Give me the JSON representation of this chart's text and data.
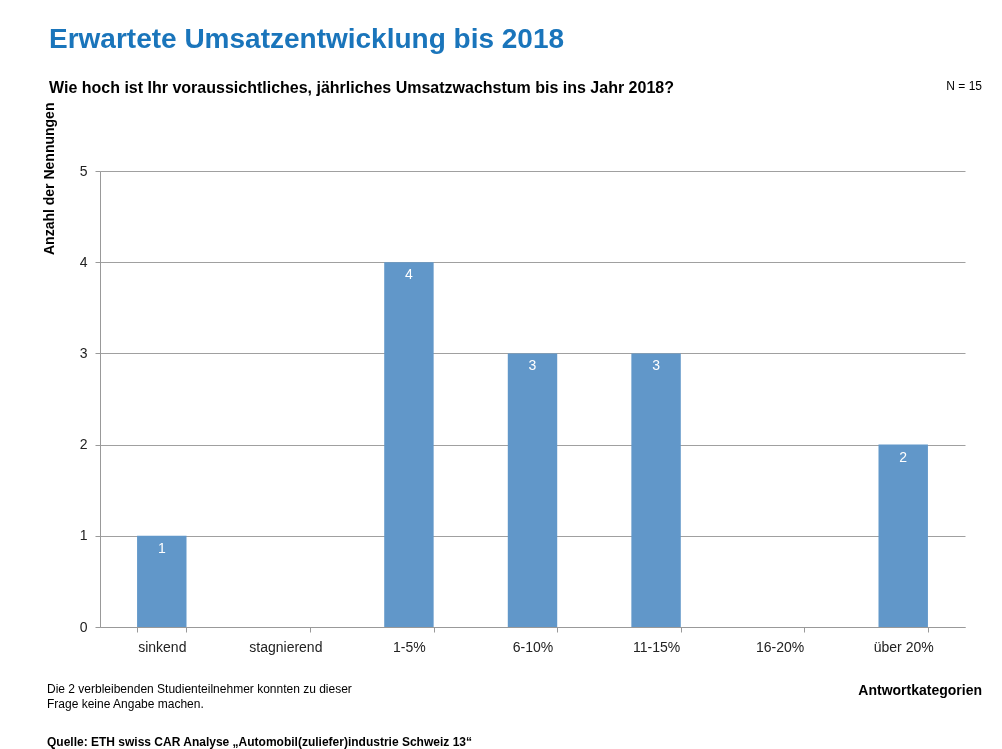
{
  "chart_data": {
    "type": "bar",
    "title": "Erwartete Umsatzentwicklung bis 2018",
    "subtitle": "Wie hoch ist Ihr voraussichtliches, jährliches Umsatzwachstum bis ins Jahr 2018?",
    "xlabel": "Antwortkategorien",
    "ylabel": "Anzahl der Nennungen",
    "categories": [
      "sinkend",
      "stagnierend",
      "1-5%",
      "6-10%",
      "11-15%",
      "16-20%",
      "über 20%"
    ],
    "values": [
      1,
      0,
      4,
      3,
      3,
      0,
      2
    ],
    "value_labels": [
      "1",
      null,
      "4",
      "3",
      "3",
      null,
      "2"
    ],
    "color": "#6197c9",
    "ylim": [
      0,
      5
    ],
    "yticks": [
      0,
      1,
      2,
      3,
      4,
      5
    ],
    "grid": "y",
    "annotations": [
      "N = 15",
      "Die 2 verbleibenden Studienteilnehmer konnten zu dieser\nFrage keine Angabe machen.",
      "Quelle: ETH swiss CAR Analyse „Automobil(zuliefer)industrie Schweiz 13“"
    ]
  }
}
